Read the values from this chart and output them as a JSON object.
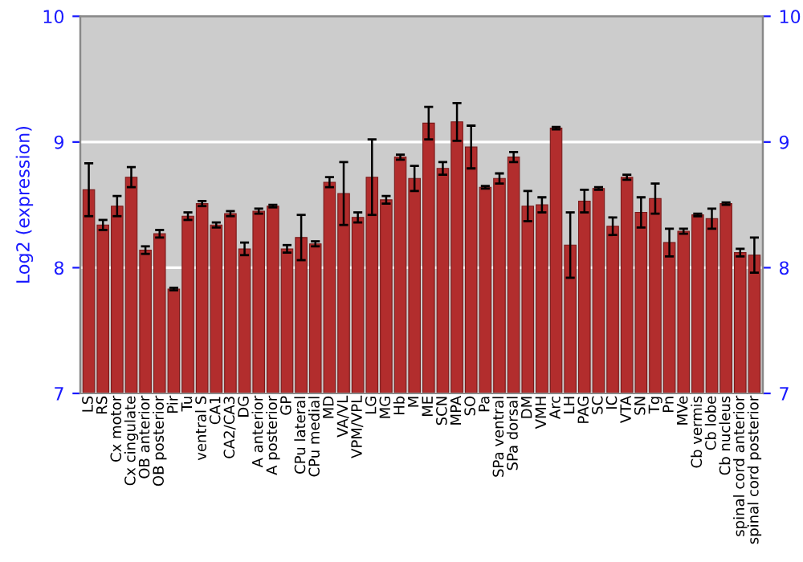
{
  "chart_data": {
    "type": "bar",
    "ylabel": "Log2 (expression)",
    "categories": [
      "LS",
      "RS",
      "Cx motor",
      "Cx cingulate",
      "OB anterior",
      "OB posterior",
      "Pir",
      "Tu",
      "ventral S",
      "CA1",
      "CA2/CA3",
      "DG",
      "A anterior",
      "A posterior",
      "GP",
      "CPu lateral",
      "CPu medial",
      "MD",
      "VA/VL",
      "VPM/VPL",
      "LG",
      "MG",
      "Hb",
      "M",
      "ME",
      "SCN",
      "MPA",
      "SO",
      "Pa",
      "SPa ventral",
      "SPa dorsal",
      "DM",
      "VMH",
      "Arc",
      "LH",
      "PAG",
      "SC",
      "IC",
      "VTA",
      "SN",
      "Tg",
      "Pn",
      "MVe",
      "Cb vermis",
      "Cb lobe",
      "Cb nucleus",
      "spinal cord anterior",
      "spinal cord posterior"
    ],
    "values": [
      8.62,
      8.34,
      8.49,
      8.72,
      8.14,
      8.27,
      7.83,
      8.41,
      8.51,
      8.34,
      8.43,
      8.15,
      8.45,
      8.49,
      8.15,
      8.24,
      8.19,
      8.68,
      8.59,
      8.4,
      8.72,
      8.54,
      8.88,
      8.71,
      9.15,
      8.79,
      9.16,
      8.96,
      8.64,
      8.71,
      8.88,
      8.49,
      8.5,
      9.11,
      8.18,
      8.53,
      8.63,
      8.33,
      8.72,
      8.44,
      8.55,
      8.2,
      8.29,
      8.42,
      8.39,
      8.51,
      8.12,
      8.1
    ],
    "errors": [
      0.21,
      0.04,
      0.08,
      0.08,
      0.03,
      0.03,
      0.01,
      0.03,
      0.02,
      0.02,
      0.02,
      0.05,
      0.02,
      0.01,
      0.03,
      0.18,
      0.02,
      0.04,
      0.25,
      0.04,
      0.3,
      0.03,
      0.02,
      0.1,
      0.13,
      0.05,
      0.15,
      0.17,
      0.01,
      0.04,
      0.04,
      0.12,
      0.06,
      0.01,
      0.26,
      0.09,
      0.01,
      0.07,
      0.02,
      0.12,
      0.12,
      0.11,
      0.02,
      0.01,
      0.08,
      0.01,
      0.03,
      0.14
    ],
    "color": "#b22d2d",
    "ylim": [
      7,
      10
    ],
    "yticks": [
      7,
      8,
      9,
      10
    ],
    "y2lim": [
      7,
      10
    ],
    "y2ticks": [
      7,
      8,
      9,
      10
    ],
    "grid": "y"
  }
}
